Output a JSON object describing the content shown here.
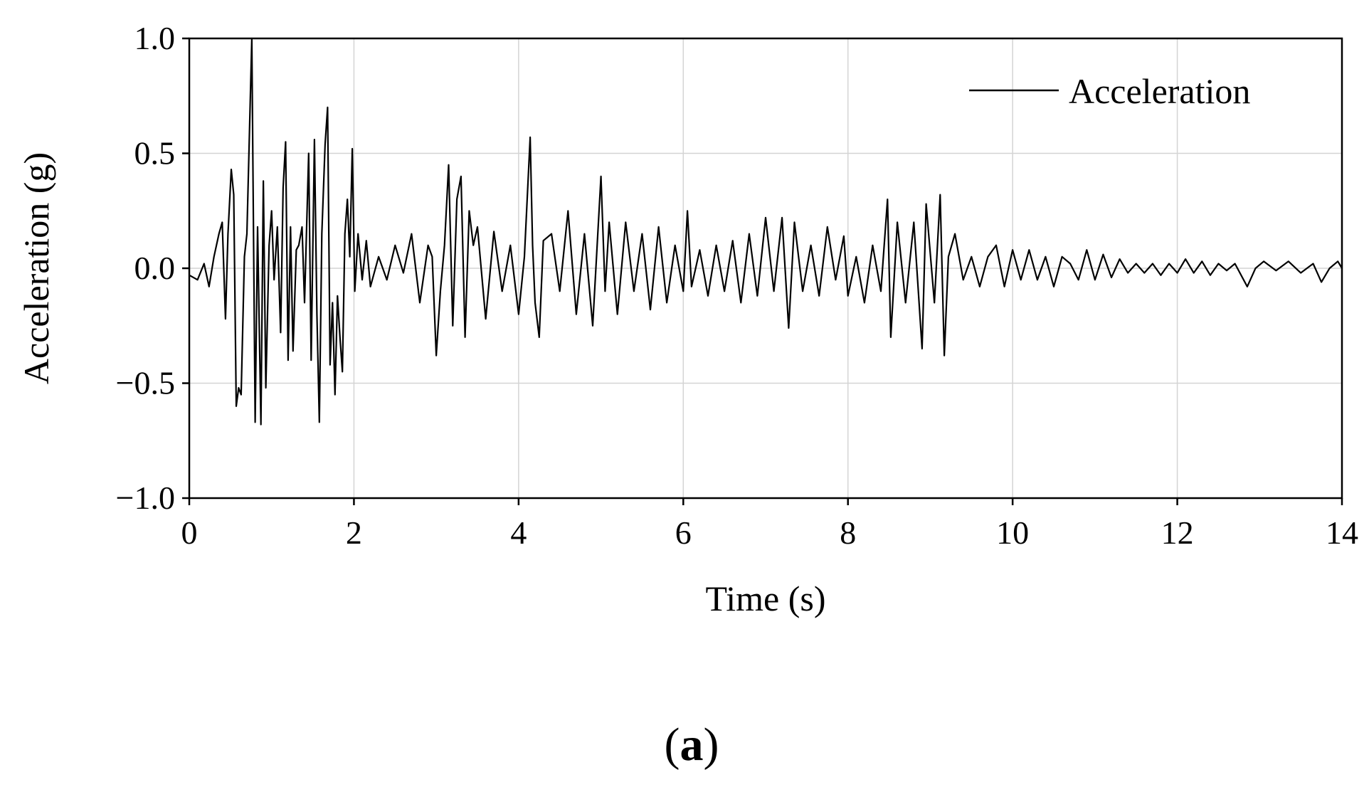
{
  "chart_data": {
    "type": "line",
    "xlabel": "Time (s)",
    "ylabel": "Acceleration (g)",
    "xlim": [
      0,
      14
    ],
    "ylim": [
      -1.0,
      1.0
    ],
    "xticks": [
      0,
      2,
      4,
      6,
      8,
      10,
      12,
      14
    ],
    "xtick_labels": [
      "0",
      "2",
      "4",
      "6",
      "8",
      "10",
      "12",
      "14"
    ],
    "yticks": [
      -1.0,
      -0.5,
      0.0,
      0.5,
      1.0
    ],
    "ytick_labels": [
      "−1.0",
      "−0.5",
      "0.0",
      "0.5",
      "1.0"
    ],
    "grid": true,
    "legend": "top-right",
    "series": [
      {
        "name": "Acceleration",
        "color": "#000000",
        "points": [
          [
            0.0,
            -0.03
          ],
          [
            0.1,
            -0.05
          ],
          [
            0.18,
            0.02
          ],
          [
            0.24,
            -0.08
          ],
          [
            0.3,
            0.05
          ],
          [
            0.36,
            0.15
          ],
          [
            0.4,
            0.2
          ],
          [
            0.44,
            -0.22
          ],
          [
            0.47,
            0.15
          ],
          [
            0.51,
            0.43
          ],
          [
            0.54,
            0.32
          ],
          [
            0.57,
            -0.6
          ],
          [
            0.6,
            -0.52
          ],
          [
            0.63,
            -0.55
          ],
          [
            0.67,
            0.05
          ],
          [
            0.7,
            0.15
          ],
          [
            0.76,
            1.0
          ],
          [
            0.8,
            -0.67
          ],
          [
            0.83,
            0.18
          ],
          [
            0.87,
            -0.68
          ],
          [
            0.9,
            0.38
          ],
          [
            0.93,
            -0.52
          ],
          [
            0.97,
            0.1
          ],
          [
            1.0,
            0.25
          ],
          [
            1.03,
            -0.05
          ],
          [
            1.07,
            0.18
          ],
          [
            1.11,
            -0.28
          ],
          [
            1.14,
            0.35
          ],
          [
            1.17,
            0.55
          ],
          [
            1.2,
            -0.4
          ],
          [
            1.23,
            0.18
          ],
          [
            1.26,
            -0.36
          ],
          [
            1.3,
            0.08
          ],
          [
            1.33,
            0.1
          ],
          [
            1.37,
            0.18
          ],
          [
            1.4,
            -0.15
          ],
          [
            1.45,
            0.5
          ],
          [
            1.48,
            -0.4
          ],
          [
            1.52,
            0.56
          ],
          [
            1.55,
            -0.2
          ],
          [
            1.58,
            -0.67
          ],
          [
            1.61,
            0.15
          ],
          [
            1.65,
            0.54
          ],
          [
            1.68,
            0.7
          ],
          [
            1.71,
            -0.42
          ],
          [
            1.74,
            -0.15
          ],
          [
            1.77,
            -0.55
          ],
          [
            1.8,
            -0.12
          ],
          [
            1.83,
            -0.3
          ],
          [
            1.86,
            -0.45
          ],
          [
            1.89,
            0.15
          ],
          [
            1.92,
            0.3
          ],
          [
            1.95,
            0.05
          ],
          [
            1.98,
            0.52
          ],
          [
            2.01,
            -0.1
          ],
          [
            2.05,
            0.15
          ],
          [
            2.1,
            -0.05
          ],
          [
            2.15,
            0.12
          ],
          [
            2.2,
            -0.08
          ],
          [
            2.3,
            0.05
          ],
          [
            2.4,
            -0.05
          ],
          [
            2.5,
            0.1
          ],
          [
            2.6,
            -0.02
          ],
          [
            2.7,
            0.15
          ],
          [
            2.8,
            -0.15
          ],
          [
            2.9,
            0.1
          ],
          [
            2.95,
            0.05
          ],
          [
            3.0,
            -0.38
          ],
          [
            3.05,
            -0.1
          ],
          [
            3.1,
            0.1
          ],
          [
            3.15,
            0.45
          ],
          [
            3.2,
            -0.25
          ],
          [
            3.25,
            0.3
          ],
          [
            3.3,
            0.4
          ],
          [
            3.35,
            -0.3
          ],
          [
            3.4,
            0.25
          ],
          [
            3.45,
            0.1
          ],
          [
            3.5,
            0.18
          ],
          [
            3.6,
            -0.22
          ],
          [
            3.7,
            0.16
          ],
          [
            3.8,
            -0.1
          ],
          [
            3.9,
            0.1
          ],
          [
            4.0,
            -0.2
          ],
          [
            4.07,
            0.05
          ],
          [
            4.14,
            0.57
          ],
          [
            4.17,
            0.1
          ],
          [
            4.2,
            -0.15
          ],
          [
            4.25,
            -0.3
          ],
          [
            4.3,
            0.12
          ],
          [
            4.4,
            0.15
          ],
          [
            4.5,
            -0.1
          ],
          [
            4.6,
            0.25
          ],
          [
            4.7,
            -0.2
          ],
          [
            4.8,
            0.15
          ],
          [
            4.9,
            -0.25
          ],
          [
            5.0,
            0.4
          ],
          [
            5.05,
            -0.1
          ],
          [
            5.1,
            0.2
          ],
          [
            5.2,
            -0.2
          ],
          [
            5.3,
            0.2
          ],
          [
            5.4,
            -0.1
          ],
          [
            5.5,
            0.15
          ],
          [
            5.6,
            -0.18
          ],
          [
            5.7,
            0.18
          ],
          [
            5.8,
            -0.15
          ],
          [
            5.9,
            0.1
          ],
          [
            6.0,
            -0.1
          ],
          [
            6.05,
            0.25
          ],
          [
            6.1,
            -0.08
          ],
          [
            6.2,
            0.08
          ],
          [
            6.3,
            -0.12
          ],
          [
            6.4,
            0.1
          ],
          [
            6.5,
            -0.1
          ],
          [
            6.6,
            0.12
          ],
          [
            6.7,
            -0.15
          ],
          [
            6.8,
            0.15
          ],
          [
            6.9,
            -0.12
          ],
          [
            7.0,
            0.22
          ],
          [
            7.1,
            -0.1
          ],
          [
            7.2,
            0.22
          ],
          [
            7.28,
            -0.26
          ],
          [
            7.35,
            0.2
          ],
          [
            7.45,
            -0.1
          ],
          [
            7.55,
            0.1
          ],
          [
            7.65,
            -0.12
          ],
          [
            7.75,
            0.18
          ],
          [
            7.85,
            -0.05
          ],
          [
            7.95,
            0.14
          ],
          [
            8.0,
            -0.12
          ],
          [
            8.1,
            0.05
          ],
          [
            8.2,
            -0.15
          ],
          [
            8.3,
            0.1
          ],
          [
            8.4,
            -0.1
          ],
          [
            8.48,
            0.3
          ],
          [
            8.52,
            -0.3
          ],
          [
            8.6,
            0.2
          ],
          [
            8.7,
            -0.15
          ],
          [
            8.8,
            0.2
          ],
          [
            8.9,
            -0.35
          ],
          [
            8.95,
            0.28
          ],
          [
            9.05,
            -0.15
          ],
          [
            9.12,
            0.32
          ],
          [
            9.17,
            -0.38
          ],
          [
            9.22,
            0.05
          ],
          [
            9.3,
            0.15
          ],
          [
            9.4,
            -0.05
          ],
          [
            9.5,
            0.05
          ],
          [
            9.6,
            -0.08
          ],
          [
            9.7,
            0.05
          ],
          [
            9.8,
            0.1
          ],
          [
            9.9,
            -0.08
          ],
          [
            10.0,
            0.08
          ],
          [
            10.1,
            -0.05
          ],
          [
            10.2,
            0.08
          ],
          [
            10.3,
            -0.05
          ],
          [
            10.4,
            0.05
          ],
          [
            10.5,
            -0.08
          ],
          [
            10.6,
            0.05
          ],
          [
            10.7,
            0.02
          ],
          [
            10.8,
            -0.05
          ],
          [
            10.9,
            0.08
          ],
          [
            11.0,
            -0.05
          ],
          [
            11.1,
            0.06
          ],
          [
            11.2,
            -0.04
          ],
          [
            11.3,
            0.04
          ],
          [
            11.4,
            -0.02
          ],
          [
            11.5,
            0.02
          ],
          [
            11.6,
            -0.02
          ],
          [
            11.7,
            0.02
          ],
          [
            11.8,
            -0.03
          ],
          [
            11.9,
            0.02
          ],
          [
            12.0,
            -0.02
          ],
          [
            12.1,
            0.04
          ],
          [
            12.2,
            -0.02
          ],
          [
            12.3,
            0.03
          ],
          [
            12.4,
            -0.03
          ],
          [
            12.5,
            0.02
          ],
          [
            12.6,
            -0.01
          ],
          [
            12.7,
            0.02
          ],
          [
            12.85,
            -0.08
          ],
          [
            12.95,
            0.0
          ],
          [
            13.05,
            0.03
          ],
          [
            13.2,
            -0.01
          ],
          [
            13.35,
            0.03
          ],
          [
            13.5,
            -0.02
          ],
          [
            13.65,
            0.02
          ],
          [
            13.75,
            -0.06
          ],
          [
            13.85,
            0.0
          ],
          [
            13.95,
            0.03
          ],
          [
            14.0,
            0.0
          ]
        ]
      }
    ]
  },
  "panel_label": "(a)"
}
